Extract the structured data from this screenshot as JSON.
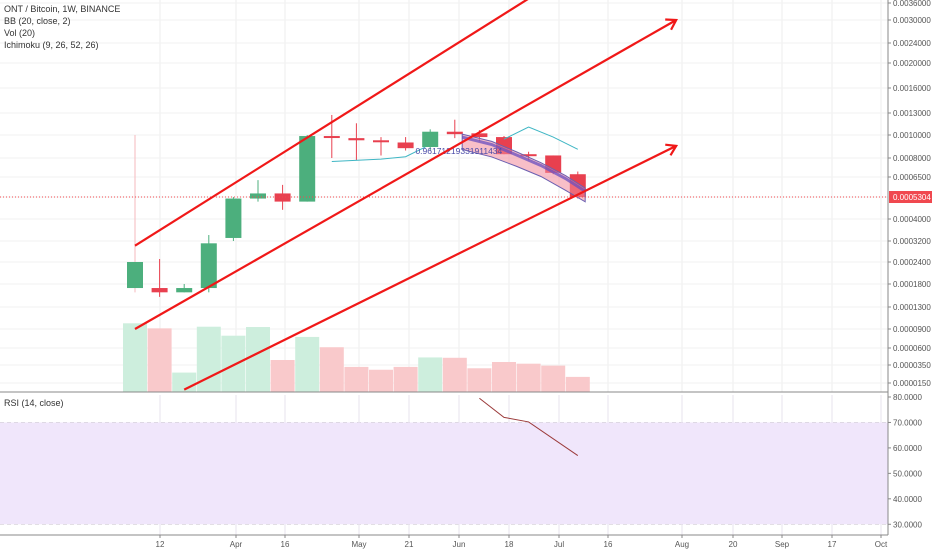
{
  "legend": {
    "symbol": "ONT / Bitcoin, 1W, BINANCE",
    "bb": "BB (20, close, 2)",
    "vol": "Vol (20)",
    "ichimoku": "Ichimoku (9, 26, 52, 26)"
  },
  "rsi": {
    "label": "RSI (14, close)"
  },
  "colors": {
    "up": "#4caf7d",
    "down": "#e8404f",
    "vol_up": "#cdeedd",
    "vol_down": "#f9c9cb",
    "trend": "#f01818",
    "rsi_bg": "#f0e6fb",
    "rsi_line": "#9b3a3a",
    "last_price": "#f0484f"
  },
  "chart_data": {
    "type": "candlestick",
    "price_scale": "log",
    "price_axis_ticks": [
      "0.0036000",
      "0.0030000",
      "0.0024000",
      "0.0020000",
      "0.0016000",
      "0.0013000",
      "0.0010000",
      "0.0008000",
      "0.0006500",
      "0.0005304",
      "0.0004000",
      "0.0003200",
      "0.0002400",
      "0.0001800",
      "0.0001300",
      "0.0000900",
      "0.0000600",
      "0.0000350",
      "0.0000150"
    ],
    "last_price": "0.0005304",
    "time_axis_ticks": [
      "12",
      "Apr",
      "16",
      "May",
      "21",
      "Jun",
      "18",
      "Jul",
      "16",
      "Aug",
      "20",
      "Sep",
      "17",
      "Oct"
    ],
    "rsi_axis_ticks": [
      "80.0000",
      "70.0000",
      "60.0000",
      "50.0000",
      "40.0000",
      "30.0000"
    ],
    "annotation": "0.96171219331911434",
    "candles": [
      {
        "week": 0,
        "open": 0.00017,
        "high": 0.001,
        "low": 0.00016,
        "close": 0.00024,
        "volume": 9.9e-05
      },
      {
        "week": 1,
        "open": 0.00017,
        "high": 0.00025,
        "low": 0.00015,
        "close": 0.00016,
        "volume": 9.1e-05
      },
      {
        "week": 2,
        "open": 0.00016,
        "high": 0.00018,
        "low": 0.00016,
        "close": 0.00017,
        "volume": 2.45e-05
      },
      {
        "week": 3,
        "open": 0.00017,
        "high": 0.00034,
        "low": 0.00016,
        "close": 0.00031,
        "volume": 9.35e-05
      },
      {
        "week": 4,
        "open": 0.00033,
        "high": 0.00053,
        "low": 0.00032,
        "close": 0.00052,
        "volume": 7.8e-05
      },
      {
        "week": 5,
        "open": 0.00052,
        "high": 0.00063,
        "low": 0.0005,
        "close": 0.00055,
        "volume": 9.3e-05
      },
      {
        "week": 6,
        "open": 0.00055,
        "high": 0.0006,
        "low": 0.00045,
        "close": 0.0005,
        "volume": 4.1e-05
      },
      {
        "week": 7,
        "open": 0.0005,
        "high": 0.001,
        "low": 0.0005,
        "close": 0.00099,
        "volume": 7.6e-05
      },
      {
        "week": 8,
        "open": 0.00099,
        "high": 0.00127,
        "low": 0.0008,
        "close": 0.00098,
        "volume": 6.1e-05
      },
      {
        "week": 9,
        "open": 0.00097,
        "high": 0.00115,
        "low": 0.00078,
        "close": 0.00095,
        "volume": 3.2e-05
      },
      {
        "week": 10,
        "open": 0.00095,
        "high": 0.00098,
        "low": 0.00082,
        "close": 0.00094,
        "volume": 2.8e-05
      },
      {
        "week": 11,
        "open": 0.00093,
        "high": 0.00098,
        "low": 0.00086,
        "close": 0.00088,
        "volume": 3.2e-05
      },
      {
        "week": 12,
        "open": 0.00089,
        "high": 0.00107,
        "low": 0.00086,
        "close": 0.00104,
        "volume": 4.45e-05
      },
      {
        "week": 13,
        "open": 0.00104,
        "high": 0.0012,
        "low": 0.00097,
        "close": 0.00101,
        "volume": 4.4e-05
      },
      {
        "week": 14,
        "open": 0.00102,
        "high": 0.00106,
        "low": 0.00094,
        "close": 0.00098,
        "volume": 3e-05
      },
      {
        "week": 15,
        "open": 0.00098,
        "high": 0.00099,
        "low": 0.00083,
        "close": 0.00083,
        "volume": 3.85e-05
      },
      {
        "week": 16,
        "open": 0.00083,
        "high": 0.00085,
        "low": 0.00078,
        "close": 0.00082,
        "volume": 3.65e-05
      },
      {
        "week": 17,
        "open": 0.00082,
        "high": 0.00082,
        "low": 0.00067,
        "close": 0.00068,
        "volume": 3.4e-05
      },
      {
        "week": 18,
        "open": 0.00067,
        "high": 0.00069,
        "low": 0.00052,
        "close": 0.00053,
        "volume": 2e-05
      }
    ],
    "trend_lines": [
      {
        "from": {
          "week": 0.0,
          "price": 0.0003
        },
        "to": {
          "week": 18.8,
          "price": 0.006
        }
      },
      {
        "from": {
          "week": 0.0,
          "price": 9e-05
        },
        "to": {
          "week": 22.0,
          "price": 0.003
        }
      },
      {
        "from": {
          "week": 2.0,
          "price": 1.1e-05
        },
        "to": {
          "week": 22.0,
          "price": 0.0009
        }
      }
    ],
    "rsi": [
      {
        "week": 14.0,
        "value": 79.5
      },
      {
        "week": 15.0,
        "value": 72.0
      },
      {
        "week": 16.0,
        "value": 70.2
      },
      {
        "week": 18.0,
        "value": 57.0
      }
    ]
  }
}
